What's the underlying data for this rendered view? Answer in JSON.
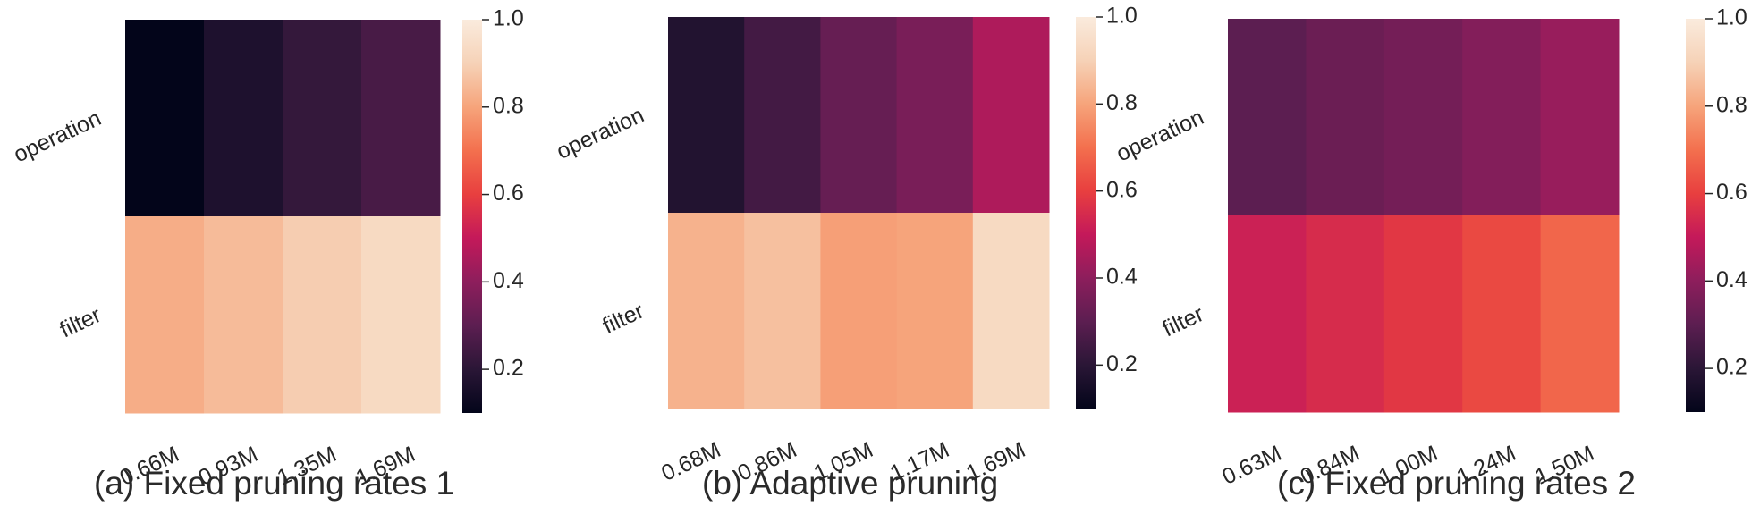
{
  "colormap": [
    "#03051a",
    "#2a1636",
    "#5c1e51",
    "#8d1e5c",
    "#c4195a",
    "#e83f3f",
    "#f3704e",
    "#f6a47b",
    "#f6d2b7",
    "#faebdd"
  ],
  "chart_data": [
    {
      "type": "heatmap",
      "caption": "(a) Fixed pruning rates 1",
      "rows": [
        "operation",
        "filter"
      ],
      "columns": [
        "0.66M",
        "0.93M",
        "1.35M",
        "1.69M"
      ],
      "values": [
        [
          0.1,
          0.17,
          0.22,
          0.26
        ],
        [
          0.82,
          0.85,
          0.89,
          0.93
        ]
      ],
      "colorbar": {
        "range": [
          0.1,
          1.0
        ],
        "ticks": [
          "0.2",
          "0.4",
          "0.6",
          "0.8",
          "1.0"
        ]
      }
    },
    {
      "type": "heatmap",
      "caption": "(b) Adaptive pruning",
      "rows": [
        "operation",
        "filter"
      ],
      "columns": [
        "0.68M",
        "0.86M",
        "1.05M",
        "1.17M",
        "1.69M"
      ],
      "values": [
        [
          0.18,
          0.25,
          0.32,
          0.36,
          0.46
        ],
        [
          0.83,
          0.86,
          0.79,
          0.8,
          0.93
        ]
      ],
      "colorbar": {
        "range": [
          0.1,
          1.0
        ],
        "ticks": [
          "0.2",
          "0.4",
          "0.6",
          "0.8",
          "1.0"
        ]
      }
    },
    {
      "type": "heatmap",
      "caption": "(c) Fixed pruning rates 2",
      "rows": [
        "operation",
        "filter"
      ],
      "columns": [
        "0.63M",
        "0.84M",
        "1.00M",
        "1.24M",
        "1.50M"
      ],
      "values": [
        [
          0.3,
          0.33,
          0.35,
          0.38,
          0.42
        ],
        [
          0.52,
          0.55,
          0.58,
          0.62,
          0.68
        ]
      ],
      "colorbar": {
        "range": [
          0.1,
          1.0
        ],
        "ticks": [
          "0.2",
          "0.4",
          "0.6",
          "0.8",
          "1.0"
        ]
      }
    }
  ]
}
